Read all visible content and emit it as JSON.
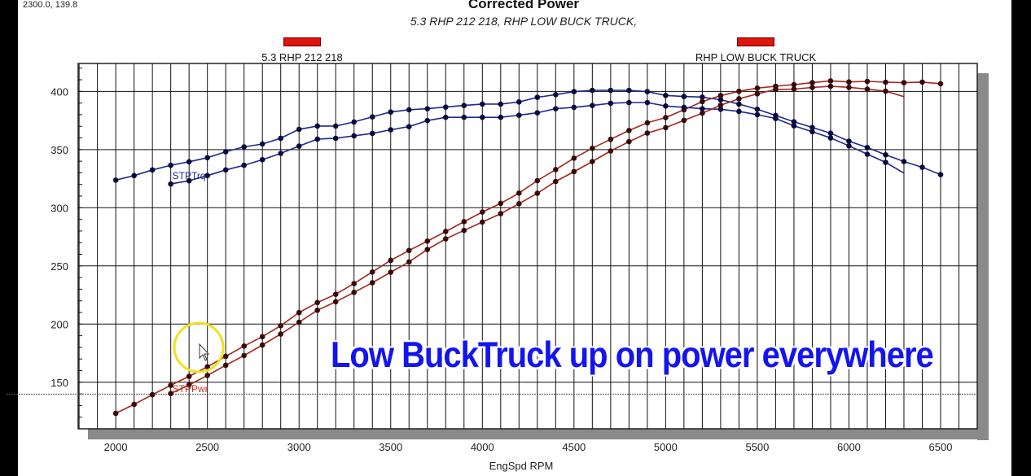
{
  "cursor_readout": "2300.0, 139.8",
  "annotation": "Low BuckTruck up on power everywhere",
  "colors": {
    "power": "#a0281c",
    "torque": "#1c2a8c",
    "legend_swatch": "#e0140c",
    "annotation": "#1414f0",
    "cursor_highlight": "#f0e020"
  },
  "chart_data": {
    "type": "line",
    "title": "Corrected Power",
    "subtitle": "5.3 RHP 212 218, RHP LOW BUCK TRUCK,",
    "xlabel": "EngSpd RPM",
    "ylabel": "",
    "xlim": [
      1795,
      6700
    ],
    "ylim": [
      110,
      424
    ],
    "xticks": [
      2000,
      2500,
      3000,
      3500,
      4000,
      4500,
      5000,
      5500,
      6000,
      6500
    ],
    "yticks": [
      150,
      200,
      250,
      300,
      350,
      400
    ],
    "grid": true,
    "legend": {
      "placement": "top",
      "entries": [
        "5.3 RHP 212 218",
        "RHP LOW BUCK TRUCK"
      ]
    },
    "series_labels": {
      "torque": "STPTrq",
      "power": "STPPwr"
    },
    "cursor": {
      "x": 2300.0,
      "y": 139.8
    },
    "runs": [
      {
        "name": "RHP LOW BUCK TRUCK",
        "rpm": [
          2000,
          2100,
          2200,
          2300,
          2400,
          2500,
          2600,
          2700,
          2800,
          2900,
          3000,
          3100,
          3200,
          3300,
          3400,
          3500,
          3600,
          3700,
          3800,
          3900,
          4000,
          4100,
          4200,
          4300,
          4400,
          4500,
          4600,
          4700,
          4800,
          4900,
          5000,
          5100,
          5200,
          5300,
          5400,
          5500,
          5600,
          5700,
          5800,
          5900,
          6000,
          6100,
          6200,
          6300,
          6400,
          6500
        ],
        "STPTrq": [
          323.7,
          327.6,
          332.5,
          336.5,
          339.5,
          343.0,
          348.1,
          352.3,
          354.8,
          359.7,
          367.4,
          370.2,
          370.2,
          373.7,
          378.1,
          382.3,
          384.2,
          385.1,
          386.5,
          387.9,
          389.1,
          389.1,
          390.9,
          394.9,
          397.2,
          399.8,
          400.9,
          400.9,
          400.9,
          399.8,
          396.5,
          395.6,
          395.1,
          392.8,
          389.1,
          384.6,
          379.3,
          373.9,
          369.0,
          364.1,
          357.2,
          351.8,
          345.5,
          339.7,
          334.8,
          328.5
        ],
        "STPPwr": [
          123.3,
          131.0,
          139.3,
          147.4,
          155.1,
          163.3,
          172.3,
          181.1,
          189.2,
          198.6,
          209.9,
          218.5,
          225.6,
          234.8,
          244.8,
          254.8,
          263.3,
          271.3,
          279.6,
          288.0,
          296.3,
          303.8,
          312.6,
          323.3,
          332.8,
          342.6,
          351.1,
          358.8,
          366.4,
          373.0,
          377.5,
          384.2,
          391.2,
          396.4,
          400.1,
          402.8,
          404.4,
          405.8,
          407.5,
          409.0,
          408.1,
          408.6,
          407.9,
          407.5,
          408.0,
          406.6
        ]
      },
      {
        "name": "5.3 RHP 212 218",
        "rpm": [
          2300,
          2400,
          2500,
          2600,
          2700,
          2800,
          2900,
          3000,
          3100,
          3200,
          3300,
          3400,
          3500,
          3600,
          3700,
          3800,
          3900,
          4000,
          4100,
          4200,
          4300,
          4400,
          4500,
          4600,
          4700,
          4800,
          4900,
          5000,
          5100,
          5200,
          5300,
          5400,
          5500,
          5600,
          5700,
          5800,
          5900,
          6000,
          6100,
          6200,
          6300
        ],
        "STPTrq": [
          320.4,
          323.2,
          327.6,
          332.5,
          336.5,
          341.3,
          346.7,
          353.0,
          359.0,
          359.7,
          361.8,
          363.9,
          367.0,
          369.7,
          374.9,
          377.7,
          377.7,
          377.7,
          377.7,
          379.5,
          381.6,
          385.1,
          386.3,
          387.9,
          389.8,
          390.4,
          390.4,
          387.4,
          386.3,
          385.1,
          384.6,
          382.8,
          380.0,
          376.7,
          370.4,
          365.3,
          360.0,
          353.2,
          346.0,
          339.0,
          329.7
        ],
        "STPPwr": [
          140.3,
          147.7,
          155.9,
          164.6,
          173.0,
          182.0,
          191.4,
          201.6,
          211.9,
          219.2,
          227.3,
          235.6,
          244.6,
          253.4,
          264.1,
          273.3,
          280.5,
          287.7,
          294.9,
          303.5,
          312.4,
          322.6,
          331.0,
          339.7,
          348.8,
          356.8,
          364.2,
          368.8,
          375.1,
          381.3,
          388.1,
          393.6,
          397.9,
          401.7,
          402.0,
          403.4,
          404.4,
          403.5,
          401.9,
          400.2,
          395.5
        ]
      }
    ]
  }
}
